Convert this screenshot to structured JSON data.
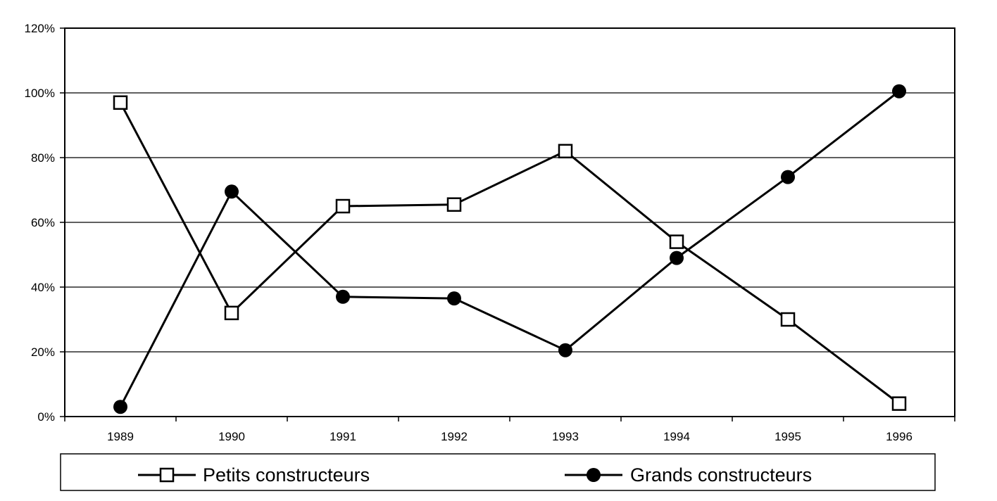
{
  "chart_data": {
    "type": "line",
    "categories": [
      "1989",
      "1990",
      "1991",
      "1992",
      "1993",
      "1994",
      "1995",
      "1996"
    ],
    "ylim": [
      0,
      120
    ],
    "y_ticks": [
      "0%",
      "20%",
      "40%",
      "60%",
      "80%",
      "100%",
      "120%"
    ],
    "y_tick_values": [
      0,
      20,
      40,
      60,
      80,
      100,
      120
    ],
    "grid": true,
    "legend_position": "bottom",
    "series": [
      {
        "name": "Petits constructeurs",
        "marker": "open-square",
        "values": [
          97,
          32,
          65,
          65.5,
          82,
          54,
          30,
          4
        ]
      },
      {
        "name": "Grands constructeurs",
        "marker": "filled-circle",
        "values": [
          3,
          69.5,
          37,
          36.5,
          20.5,
          49,
          74,
          100.5
        ]
      }
    ],
    "colors": {
      "line": "#000000",
      "grid": "#000000",
      "background": "#ffffff"
    }
  }
}
